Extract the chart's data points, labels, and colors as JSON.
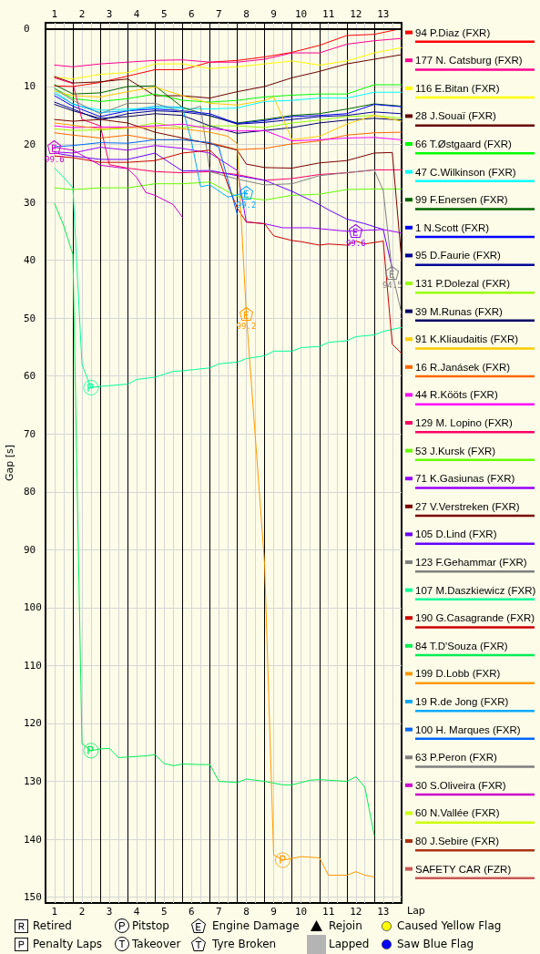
{
  "chart_data": {
    "type": "line",
    "xlabel": "Lap",
    "ylabel": "Gap [s]",
    "grid": true,
    "legend": "right",
    "x": [
      1,
      1.67,
      2.67,
      3.67,
      4.67,
      5.67,
      6.67,
      7.67,
      8.67,
      9.67,
      10.67,
      11.67,
      12.67,
      13.67
    ],
    "xlim": [
      0.67,
      13.67
    ],
    "xticks": [
      {
        "value": 0.67,
        "label": null
      },
      1,
      {
        "value": 1.33,
        "label": null
      },
      {
        "value": 1.67,
        "label": null
      },
      2,
      {
        "value": 2.33,
        "label": null
      },
      {
        "value": 2.67,
        "label": null
      },
      3,
      {
        "value": 3.33,
        "label": null
      },
      {
        "value": 3.67,
        "label": null
      },
      4,
      {
        "value": 4.33,
        "label": null
      },
      {
        "value": 4.67,
        "label": null
      },
      5,
      {
        "value": 5.33,
        "label": null
      },
      {
        "value": 5.67,
        "label": null
      },
      6,
      {
        "value": 6.33,
        "label": null
      },
      {
        "value": 6.67,
        "label": null
      },
      7,
      {
        "value": 7.33,
        "label": null
      },
      {
        "value": 7.67,
        "label": null
      },
      8,
      {
        "value": 8.33,
        "label": null
      },
      {
        "value": 8.67,
        "label": null
      },
      9,
      {
        "value": 9.33,
        "label": null
      },
      {
        "value": 9.67,
        "label": null
      },
      10,
      {
        "value": 10.33,
        "label": null
      },
      {
        "value": 10.67,
        "label": null
      },
      11,
      {
        "value": 11.33,
        "label": null
      },
      {
        "value": 11.67,
        "label": null
      },
      12,
      {
        "value": 12.33,
        "label": null
      },
      {
        "value": 12.67,
        "label": null
      },
      13,
      {
        "value": 13.33,
        "label": null
      },
      {
        "value": 13.67,
        "label": null
      }
    ],
    "x2lim": [
      0.67,
      13.67
    ],
    "x2ticks": [
      1,
      2,
      3,
      4,
      5,
      6,
      7,
      8,
      9,
      10,
      11,
      12,
      13
    ],
    "ylim": [
      151,
      -1
    ],
    "yticks": [
      0,
      10,
      20,
      30,
      40,
      50,
      60,
      70,
      80,
      90,
      100,
      110,
      120,
      130,
      140,
      150
    ],
    "ref_lines": [
      {
        "axis": "y",
        "value": 0,
        "color": "#000000"
      }
    ],
    "series": [
      {
        "name": "94 P.Diaz (FXR)",
        "color": "#ff0000",
        "values": [
          9.9,
          10.0,
          9.3,
          8.2,
          7.1,
          7.1,
          5.8,
          5.5,
          4.9,
          4.1,
          2.9,
          1.2,
          1.0,
          0
        ]
      },
      {
        "name": "177 N. Catsburg (FXR)",
        "color": "#ff0090",
        "values": [
          6.3,
          6.6,
          6.1,
          5.8,
          5.5,
          5.4,
          5.8,
          5.8,
          5.3,
          4.2,
          4.2,
          2.7,
          2.1,
          1.7
        ]
      },
      {
        "name": "116 E.Bitan (FXR)",
        "color": "#ffff00",
        "values": [
          8.4,
          8.7,
          7.9,
          7.6,
          6.1,
          6.1,
          6.9,
          6.6,
          6.1,
          5.6,
          6.3,
          5.6,
          4.2,
          3.3
        ]
      },
      {
        "name": "28 J.Souaï (FXR)",
        "color": "#660000",
        "values": [
          8.3,
          9.4,
          9.2,
          8.7,
          11.6,
          11.6,
          12.0,
          10.9,
          10.0,
          8.5,
          7.4,
          6.1,
          5.3,
          4.5
        ]
      },
      {
        "name": "66 T.Østgaard (FXR)",
        "color": "#00ff00",
        "values": [
          10.3,
          12.1,
          12.6,
          12.1,
          11.3,
          12.4,
          12.7,
          12.4,
          11.8,
          11.5,
          11.3,
          11.3,
          9.7,
          9.7
        ]
      },
      {
        "name": "47 C.Wilkinson (FXR)",
        "color": "#00ffff",
        "values": [
          10.8,
          13.1,
          14.1,
          13.9,
          13.7,
          13.8,
          13.9,
          13.7,
          12.6,
          12.4,
          12.0,
          12.0,
          11.0,
          11.0
        ]
      },
      {
        "name": "99 F.Enersen (FXR)",
        "color": "#006600",
        "values": [
          9.7,
          11.3,
          11.1,
          10.0,
          9.9,
          13.6,
          15.1,
          16.3,
          15.7,
          15.0,
          14.7,
          13.9,
          13.0,
          13.4
        ]
      },
      {
        "name": "1 N.Scott (FXR)",
        "color": "#0000ff",
        "values": [
          11.6,
          13.4,
          15.2,
          14.2,
          13.9,
          14.2,
          14.7,
          16.4,
          15.9,
          15.2,
          15.0,
          14.7,
          13.1,
          13.5
        ]
      },
      {
        "name": "95 D.Faurie (FXR)",
        "color": "#000099",
        "values": [
          12.7,
          13.9,
          15.8,
          14.7,
          14.2,
          14.4,
          15.0,
          16.5,
          16.2,
          15.7,
          15.2,
          15.0,
          14.4,
          14.7
        ]
      },
      {
        "name": "131 P.Dolezal (FXR)",
        "color": "#99ff00",
        "values": [
          17.3,
          17.6,
          17.5,
          17.2,
          16.3,
          17.1,
          16.8,
          16.8,
          17.1,
          16.3,
          15.8,
          15.2,
          15.0,
          15.5
        ]
      },
      {
        "name": "39 M.Runas (FXR)",
        "color": "#000066",
        "values": [
          13.1,
          14.2,
          15.5,
          15.2,
          14.7,
          15.0,
          16.8,
          18.1,
          17.6,
          17.1,
          16.3,
          15.8,
          15.5,
          15.8
        ]
      },
      {
        "name": "91 K.Kliaudaitis (FXR)",
        "color": "#ffcc00",
        "x": [
          1,
          1.67,
          2.67,
          3.67,
          4.67,
          5.67,
          6.67,
          7.67,
          8.67,
          9,
          9.67,
          10.67,
          11.67,
          12.67,
          13.67
        ],
        "values": [
          10.8,
          11.6,
          11.8,
          10.9,
          10.1,
          11.6,
          12.9,
          13.2,
          12.4,
          11.8,
          19.2,
          18.6,
          16.5,
          15.0,
          16.0
        ]
      },
      {
        "name": "16 R.Janásek (FXR)",
        "color": "#ff6600",
        "values": [
          18.0,
          18.4,
          18.9,
          18.4,
          19.2,
          19.2,
          19.7,
          20.9,
          20.7,
          19.9,
          19.4,
          18.4,
          18.0,
          17.9
        ]
      },
      {
        "name": "44 R.Kööts (FXR)",
        "color": "#ff00ff",
        "values": [
          16.8,
          17.1,
          17.0,
          17.0,
          16.8,
          16.5,
          17.3,
          17.7,
          17.6,
          19.4,
          19.2,
          18.9,
          18.8,
          19.2
        ]
      },
      {
        "name": "129 M. Lopino (FXR)",
        "color": "#ff0066",
        "x": [
          1,
          1.67,
          2,
          2.67,
          3,
          3.67,
          4.67,
          5.67,
          6.67,
          7.67,
          8.67,
          9.67,
          10.67,
          11.67,
          12.67,
          13.67
        ],
        "values": [
          8.5,
          9.5,
          15.7,
          16.8,
          23.5,
          24.1,
          24.7,
          24.9,
          24.7,
          25.2,
          26.2,
          25.9,
          25.2,
          24.9,
          24.4,
          24.4
        ]
      },
      {
        "name": "53 J.Kursk (FXR)",
        "color": "#66ff00",
        "values": [
          27.5,
          27.8,
          27.5,
          27.5,
          26.8,
          26.8,
          26.5,
          29.0,
          29.6,
          28.8,
          28.6,
          27.8,
          27.7,
          27.7
        ]
      },
      {
        "name": "71 K.Gasiunas (FXR)",
        "color": "#9900ff",
        "x": [
          1,
          1.67,
          2.67,
          3.67,
          4.67,
          5.67,
          6.67,
          7.67,
          8,
          8.67,
          9.33,
          10.33,
          11,
          11.67,
          12,
          13,
          13.67
        ],
        "values": [
          21.3,
          21.5,
          20.5,
          21.0,
          20.2,
          20.7,
          21.5,
          24.5,
          33.4,
          33.7,
          34.4,
          34.4,
          34.7,
          35.0,
          34.9,
          34.7,
          35.3
        ]
      },
      {
        "name": "27 V.Verstreken (FXR)",
        "color": "#7a0000",
        "x": [
          1,
          1.67,
          2.67,
          3.67,
          4.67,
          5.67,
          6.67,
          7,
          7.67,
          8,
          8.67,
          9.67,
          10.67,
          11.67,
          12.67,
          13.33,
          13.67
        ],
        "values": [
          15.7,
          16.0,
          15.7,
          16.3,
          17.9,
          18.9,
          19.9,
          20.2,
          21.0,
          23.4,
          24.0,
          24.1,
          23.2,
          22.8,
          21.5,
          21.4,
          40.0
        ]
      },
      {
        "name": "105 D.Lind (FXR)",
        "color": "#6600ff",
        "x": [
          1,
          1.67,
          2.67,
          3.67,
          4.67,
          5.67,
          6.67,
          7.67,
          8.67,
          9.67,
          10.67,
          11,
          11.67,
          12.33,
          13,
          13.33
        ],
        "values": [
          21.5,
          22.0,
          22.6,
          22.6,
          21.5,
          24.6,
          24.5,
          25.4,
          26.2,
          28.1,
          30.4,
          31.3,
          32.9,
          33.7,
          34.7,
          41.5
        ]
      },
      {
        "name": "123 F.Gehammar (FXR)",
        "color": "#808080",
        "x": [
          1,
          1.67,
          2.67,
          3.67,
          4.67,
          5.67,
          6.33,
          6.67,
          7.67,
          8.67,
          9.67,
          10.67,
          11.67,
          12.67,
          13,
          13.33,
          13.67
        ],
        "values": [
          10.4,
          12.4,
          14.7,
          12.9,
          12.9,
          14.4,
          13.4,
          24.7,
          26.0,
          27.0,
          26.8,
          25.4,
          24.9,
          24.4,
          28.0,
          42.2,
          49.2
        ]
      },
      {
        "name": "107 M.Daszkiewicz (FXR)",
        "color": "#00ff99",
        "x": [
          1,
          1.33,
          1.67,
          2,
          2.33,
          2.67,
          3.67,
          4,
          4.67,
          5.33,
          5.67,
          6.67,
          7,
          7.67,
          8,
          8.67,
          9,
          9.67,
          10,
          10.67,
          11,
          11.67,
          12,
          12.67,
          13,
          13.67
        ],
        "values": [
          24.1,
          25.7,
          27.5,
          58.0,
          62.0,
          61.8,
          61.4,
          60.6,
          60.2,
          59.2,
          59.1,
          58.6,
          57.9,
          57.6,
          57.0,
          56.5,
          55.7,
          55.7,
          55.1,
          54.9,
          54.2,
          53.9,
          53.2,
          52.9,
          52.3,
          51.6
        ]
      },
      {
        "name": "190 G.Casagrande (FXR)",
        "color": "#cc0000",
        "x": [
          1,
          1.67,
          2.67,
          3.67,
          4.67,
          5.67,
          6.67,
          7,
          7.33,
          7.67,
          8,
          8.67,
          9,
          9.67,
          10,
          10.67,
          11,
          11.67,
          12,
          12.33,
          13,
          13.33,
          13.67
        ],
        "values": [
          22.0,
          22.3,
          23.1,
          23.1,
          22.8,
          21.5,
          21.0,
          22.5,
          27.0,
          31.0,
          33.4,
          33.7,
          35.8,
          36.6,
          36.8,
          37.4,
          37.2,
          37.4,
          36.7,
          37.2,
          36.7,
          54.5,
          56.1
        ]
      },
      {
        "name": "84 T.D'Souza (FXR)",
        "color": "#00ee55",
        "x": [
          1,
          1.33,
          1.67,
          2,
          2.33,
          2.67,
          3,
          3.33,
          4.33,
          4.67,
          5,
          5.33,
          5.67,
          6.33,
          6.67,
          7,
          7.67,
          8,
          8.67,
          9.33,
          9.67,
          10.33,
          10.67,
          11.67,
          12,
          12.33,
          12.67
        ],
        "values": [
          30.2,
          34.0,
          39.0,
          123.5,
          124.7,
          124.4,
          124.3,
          125.9,
          125.6,
          125.4,
          126.9,
          127.3,
          127.0,
          127.1,
          127.1,
          130.0,
          130.2,
          129.6,
          130.0,
          130.6,
          130.6,
          129.8,
          129.7,
          130.0,
          129.2,
          131.0,
          139.3
        ]
      },
      {
        "name": "199 D.Lobb (FXR)",
        "color": "#ff9900",
        "x": [
          1,
          1.67,
          2.67,
          3.67,
          4.67,
          5.67,
          6.67,
          7.33,
          7.67,
          8,
          8.67,
          9,
          9.33,
          9.67,
          10,
          10.67,
          11,
          11.67,
          12,
          12.33,
          12.67
        ],
        "values": [
          16.3,
          16.7,
          17.3,
          17.1,
          17.1,
          17.3,
          17.9,
          18.6,
          19.9,
          49.2,
          92.6,
          142.7,
          143.6,
          143.3,
          143.0,
          143.2,
          146.2,
          146.2,
          145.6,
          146.2,
          146.5
        ]
      },
      {
        "name": "19 R.de Jong (FXR)",
        "color": "#00aaff",
        "x": [
          1,
          1.67,
          2.67,
          3.67,
          4.67,
          5.67,
          6,
          6.33,
          6.67,
          7.33,
          8
        ],
        "values": [
          11.2,
          13.0,
          14.5,
          14.2,
          13.4,
          13.6,
          19.5,
          27.3,
          27.0,
          29.1,
          28.3
        ]
      },
      {
        "name": "100 H. Marques (FXR)",
        "color": "#0066ff",
        "x": [
          1,
          1.67,
          2.67,
          3.67,
          4.67,
          5.67,
          6.67,
          7,
          7.67
        ],
        "values": [
          20.4,
          20.2,
          19.7,
          19.8,
          19.2,
          19.2,
          19.7,
          20.5,
          32.1
        ]
      },
      {
        "name": "63 P.Peron (FXR)",
        "color": "#7f7f7f",
        "values": [
          null,
          null,
          null,
          null,
          null,
          null,
          null,
          null,
          null,
          null,
          null,
          null,
          null,
          null
        ]
      },
      {
        "name": "30 S.Oliveira (FXR)",
        "color": "#cc00cc",
        "x": [
          1,
          1.67,
          2.67,
          3.67,
          4,
          4.33,
          4.67,
          5.33,
          5.67
        ],
        "values": [
          20.5,
          21.0,
          23.6,
          24.2,
          25.7,
          28.3,
          28.8,
          30.4,
          32.6
        ]
      },
      {
        "name": "60 N.Vallée (FXR)",
        "color": "#ccff00",
        "values": [
          null,
          null,
          null,
          null,
          null,
          null,
          null,
          null,
          null,
          null,
          null,
          null,
          null,
          null
        ]
      },
      {
        "name": "80 J.Sebire (FXR)",
        "color": "#aa3311",
        "values": [
          null,
          null,
          null,
          null,
          null,
          null,
          null,
          null,
          null,
          null,
          null,
          null,
          null,
          null
        ]
      },
      {
        "name": "SAFETY CAR (FZR)",
        "color": "#cc5555",
        "values": [
          null,
          null,
          null,
          null,
          null,
          null,
          null,
          null,
          null,
          null,
          null,
          null,
          null,
          null
        ]
      },
      {
        "type": "scatter",
        "marker": "circle",
        "color": "#00ff99",
        "x": [
          2.33
        ],
        "values": [
          62.0
        ]
      },
      {
        "type": "scatter",
        "marker": "circle",
        "color": "#00ee55",
        "x": [
          2.33
        ],
        "values": [
          124.7
        ]
      },
      {
        "type": "scatter",
        "marker": "circle",
        "color": "#ff9900",
        "x": [
          9.33
        ],
        "values": [
          143.6
        ]
      }
    ],
    "annotations": [
      "Retired",
      "Penalty Laps",
      "Pitstop",
      "Takeover",
      "Engine Damage",
      "Tyre Broken",
      "Rejoin",
      "Lapped",
      "Caused Yellow Flag",
      "Saw Blue Flag",
      {
        "text": "99.6",
        "x": 1,
        "y": 20.5
      },
      {
        "text": "99.2",
        "x": 8,
        "y": 28.3
      },
      {
        "text": "99.2",
        "x": 8,
        "y": 49.2
      },
      {
        "text": "99.6",
        "x": 12,
        "y": 34.9
      },
      {
        "text": "94.5",
        "x": 13.33,
        "y": 42.2
      }
    ]
  }
}
